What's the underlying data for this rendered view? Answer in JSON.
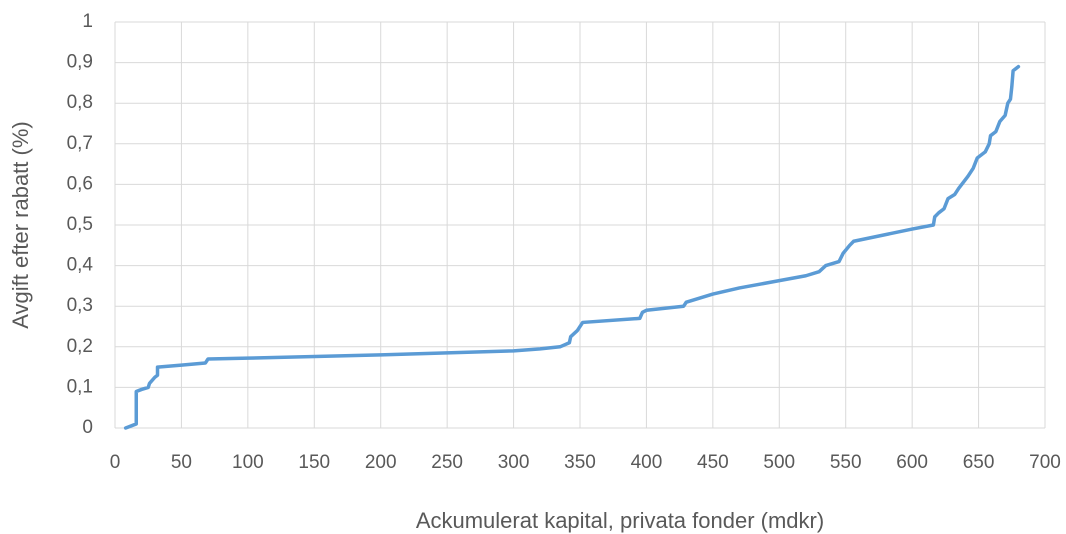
{
  "chart_data": {
    "type": "line",
    "x_label": "Ackumulerat kapital, privata fonder (mdkr)",
    "y_label": "Avgift efter rabatt (%)",
    "color": "#5b9bd5",
    "grid": true,
    "x": [
      8,
      16,
      16,
      20,
      25,
      26,
      30,
      32,
      32,
      50,
      68,
      70,
      100,
      200,
      300,
      320,
      335,
      342,
      343,
      348,
      352,
      395,
      397,
      400,
      428,
      430,
      450,
      470,
      500,
      520,
      530,
      535,
      545,
      548,
      553,
      556,
      600,
      616,
      617,
      620,
      624,
      627,
      632,
      635,
      642,
      646,
      649,
      655,
      658,
      659,
      663,
      666,
      670,
      672,
      674,
      675,
      676,
      680
    ],
    "values": [
      0,
      0.01,
      0.09,
      0.095,
      0.1,
      0.11,
      0.125,
      0.13,
      0.15,
      0.155,
      0.16,
      0.17,
      0.172,
      0.18,
      0.19,
      0.195,
      0.2,
      0.21,
      0.225,
      0.24,
      0.26,
      0.27,
      0.285,
      0.29,
      0.3,
      0.31,
      0.33,
      0.345,
      0.363,
      0.375,
      0.385,
      0.4,
      0.41,
      0.43,
      0.45,
      0.46,
      0.49,
      0.5,
      0.52,
      0.53,
      0.54,
      0.565,
      0.575,
      0.59,
      0.62,
      0.64,
      0.665,
      0.68,
      0.7,
      0.72,
      0.73,
      0.755,
      0.77,
      0.8,
      0.81,
      0.84,
      0.88,
      0.89
    ],
    "xlim": [
      0,
      700
    ],
    "xticks": [
      0,
      50,
      100,
      150,
      200,
      250,
      300,
      350,
      400,
      450,
      500,
      550,
      600,
      650,
      700
    ],
    "ylim": [
      0,
      1
    ],
    "yticks": [
      0,
      {
        "value": 0.1,
        "label": "0,1"
      },
      {
        "value": 0.2,
        "label": "0,2"
      },
      {
        "value": 0.3,
        "label": "0,3"
      },
      {
        "value": 0.4,
        "label": "0,4"
      },
      {
        "value": 0.5,
        "label": "0,5"
      },
      {
        "value": 0.6,
        "label": "0,6"
      },
      {
        "value": 0.7,
        "label": "0,7"
      },
      {
        "value": 0.8,
        "label": "0,8"
      },
      {
        "value": 0.9,
        "label": "0,9"
      },
      1
    ]
  }
}
